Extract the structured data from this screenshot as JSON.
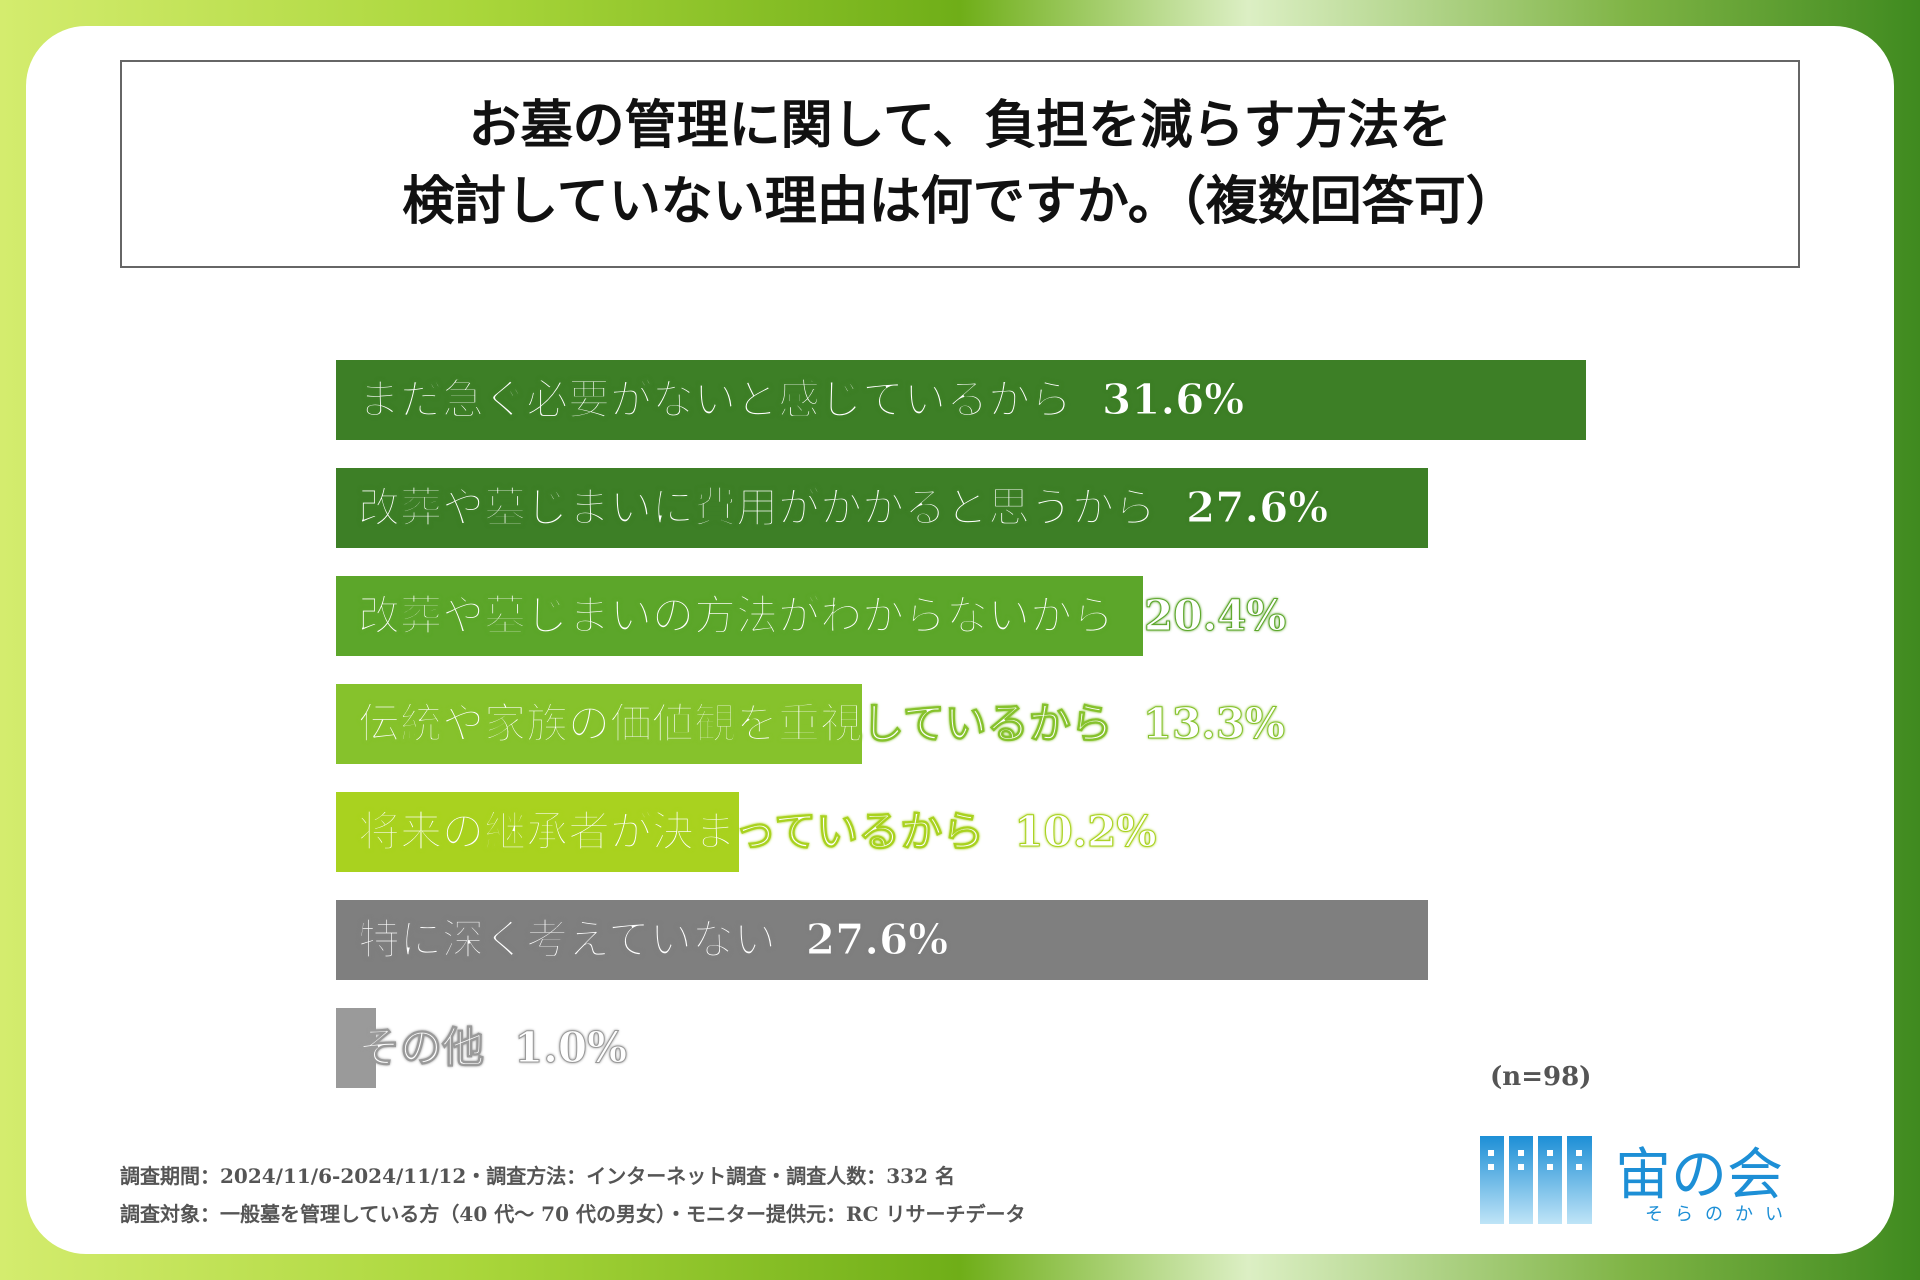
{
  "title": {
    "line1": "お墓の管理に関して、負担を減らす方法を",
    "line2": "検討していない理由は何ですか。（複数回答可）"
  },
  "chart_data": {
    "type": "bar",
    "orientation": "horizontal",
    "categories": [
      "まだ急ぐ必要がないと感じているから",
      "改葬や墓じまいに費用がかかると思うから",
      "改葬や墓じまいの方法がわからないから",
      "伝統や家族の価値観を重視しているから",
      "将来の継承者が決まっているから",
      "特に深く考えていない",
      "その他"
    ],
    "values": [
      31.6,
      27.6,
      20.4,
      13.3,
      10.2,
      27.6,
      1.0
    ],
    "value_labels": [
      "31.6%",
      "27.6%",
      "20.4%",
      "13.3%",
      "10.2%",
      "27.6%",
      "1.0%"
    ],
    "colors": [
      "#3d7f26",
      "#3d7f26",
      "#5ca62a",
      "#86c22c",
      "#a9d21f",
      "#7f7f7f",
      "#9a9a9a"
    ],
    "xlim": [
      0,
      31.6
    ],
    "grid": false,
    "legend": "none"
  },
  "sample_note": "(n=98)",
  "footer": {
    "line1": "調査期間：2024/11/6-2024/11/12・調査方法：インターネット調査・調査人数：332 名",
    "line2": "調査対象：一般墓を管理している方（40 代〜 70 代の男女）・モニター提供元：RC リサーチデータ"
  },
  "logo": {
    "name": "宙の会",
    "sub": "そらのかい",
    "color": "#1d8fd6"
  }
}
